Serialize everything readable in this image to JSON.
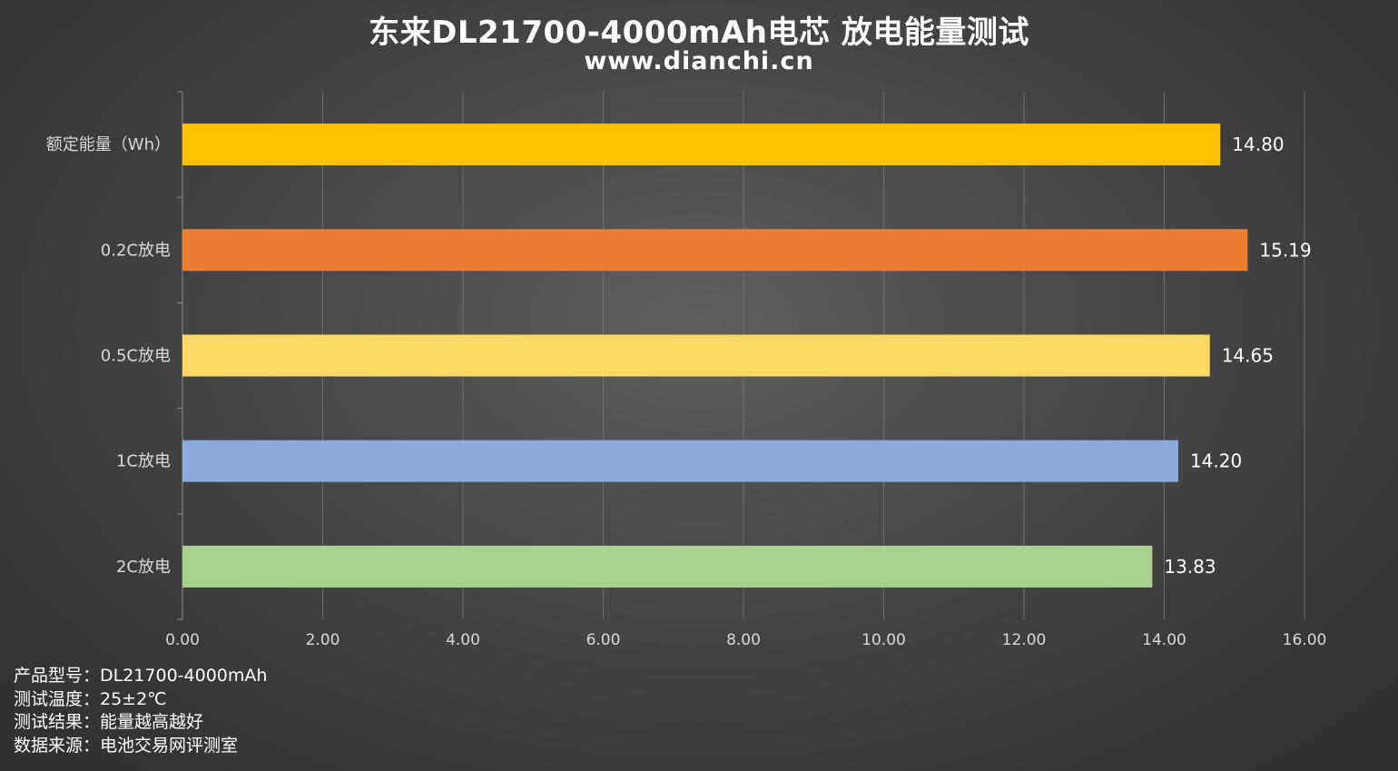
{
  "chart_data": {
    "type": "bar",
    "orientation": "horizontal",
    "title": "东来DL21700-4000mAh电芯 放电能量测试",
    "subtitle": "www.dianchi.cn",
    "categories": [
      "额定能量（Wh）",
      "0.2C放电",
      "0.5C放电",
      "1C放电",
      "2C放电"
    ],
    "values": [
      14.8,
      15.19,
      14.65,
      14.2,
      13.83
    ],
    "value_labels": [
      "14.80",
      "15.19",
      "14.65",
      "14.20",
      "13.83"
    ],
    "bar_colors": [
      "#FFC000",
      "#ED7D31",
      "#FFD966",
      "#8EA9DB",
      "#A9D18E"
    ],
    "xlim": [
      0,
      16
    ],
    "xticks": [
      "0.00",
      "2.00",
      "4.00",
      "6.00",
      "8.00",
      "10.00",
      "12.00",
      "14.00",
      "16.00"
    ],
    "xlabel": "",
    "ylabel": "",
    "grid": "vertical",
    "legend": "none"
  },
  "info": {
    "model": "产品型号：DL21700-4000mAh",
    "temperature": "测试温度：25±2℃",
    "result": "测试结果：能量越高越好",
    "source": "数据来源：电池交易网评测室"
  }
}
